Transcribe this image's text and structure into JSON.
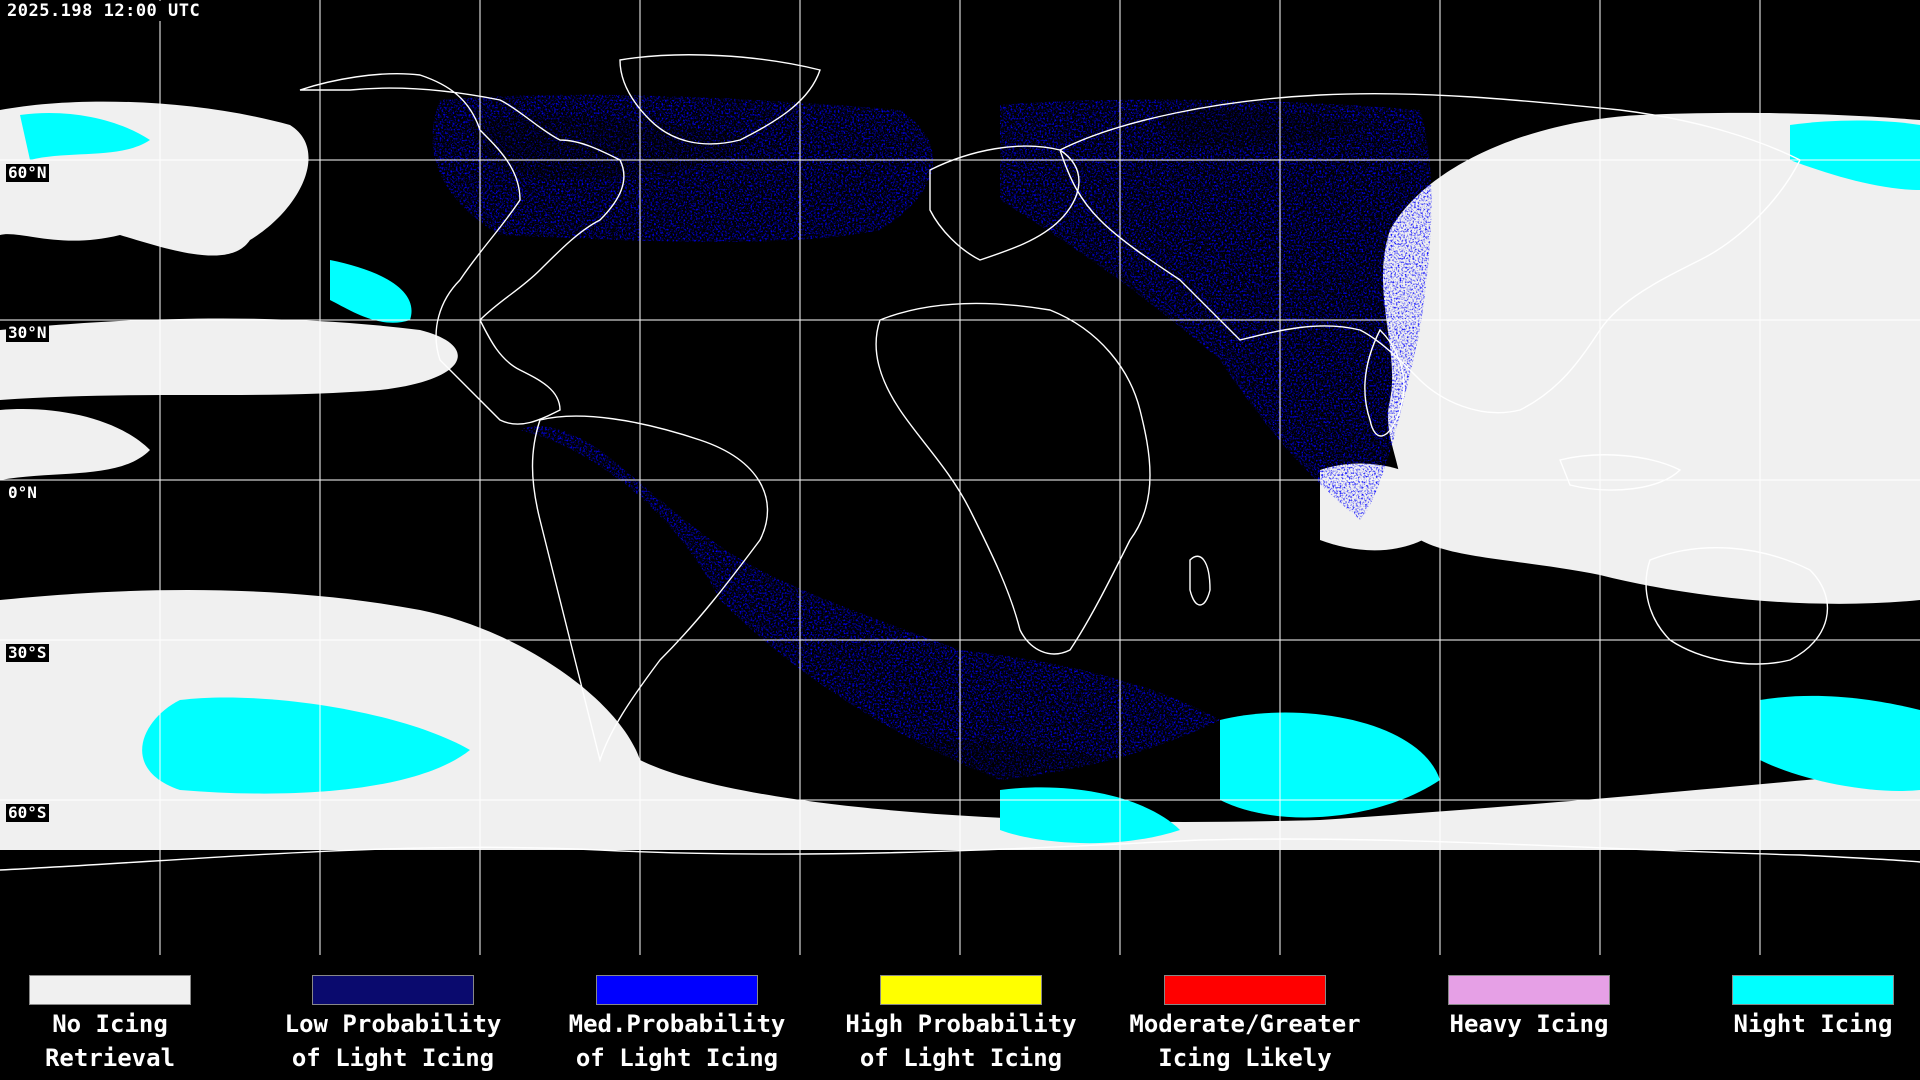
{
  "timestamp": "2025.198 12:00 UTC",
  "lat_labels": [
    "60°N",
    "30°N",
    "0°N",
    "30°S",
    "60°S"
  ],
  "legend": [
    {
      "line1": "No Icing",
      "line2": "Retrieval",
      "color": "#f0f0f0"
    },
    {
      "line1": "Low Probability",
      "line2": "of Light Icing",
      "color": "#0a0a6e"
    },
    {
      "line1": "Med.Probability",
      "line2": "of Light Icing",
      "color": "#0000ff"
    },
    {
      "line1": "High Probability",
      "line2": "of Light Icing",
      "color": "#ffff00"
    },
    {
      "line1": "Moderate/Greater",
      "line2": "Icing Likely",
      "color": "#ff0000"
    },
    {
      "line1": "Heavy Icing",
      "line2": "",
      "color": "#e6a0e6"
    },
    {
      "line1": "Night Icing",
      "line2": "",
      "color": "#00ffff"
    }
  ],
  "colors": {
    "background": "#000000",
    "grid": "#ffffff",
    "no_icing": "#f0f0f0",
    "night_icing": "#00ffff",
    "low": "#0a0a6e",
    "med": "#0000ff",
    "high": "#ffff00",
    "moderate": "#ff0000",
    "heavy": "#e6a0e6"
  },
  "projection": "equirectangular",
  "grid_spacing_degrees": 30
}
